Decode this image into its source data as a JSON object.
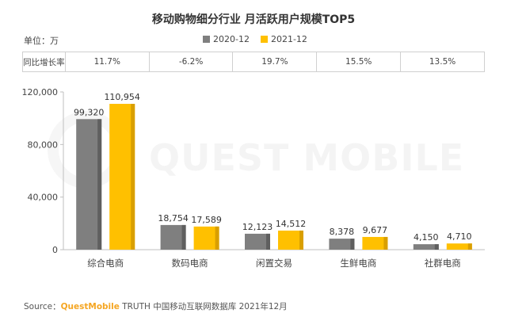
{
  "title": "移动购物细分行业 月活跃用户规模TOP5",
  "unit_label": "单位：万",
  "watermark": "QUEST MOBILE",
  "growth_row": {
    "label": "同比增长率",
    "values": [
      "11.7%",
      "-6.2%",
      "19.7%",
      "15.5%",
      "13.5%"
    ]
  },
  "colors": {
    "series_2020": "#7f7f7f",
    "series_2021": "#ffc000"
  },
  "source": {
    "prefix": "Source：",
    "brand": "QuestMobile",
    "rest": "TRUTH 中国移动互联网数据库 2021年12月"
  },
  "chart_data": {
    "type": "bar",
    "title": "移动购物细分行业 月活跃用户规模TOP5",
    "categories": [
      "综合电商",
      "数码电商",
      "闲置交易",
      "生鲜电商",
      "社群电商"
    ],
    "series": [
      {
        "name": "2020-12",
        "values": [
          99320,
          18754,
          12123,
          8378,
          4150
        ],
        "labels": [
          "99,320",
          "18,754",
          "12,123",
          "8,378",
          "4,150"
        ]
      },
      {
        "name": "2021-12",
        "values": [
          110954,
          17589,
          14512,
          9677,
          4710
        ],
        "labels": [
          "110,954",
          "17,589",
          "14,512",
          "9,677",
          "4,710"
        ]
      }
    ],
    "yticks": [
      0,
      40000,
      80000,
      120000
    ],
    "ytick_labels": [
      "0",
      "40,000",
      "80,000",
      "120,000"
    ],
    "ylim": [
      0,
      120000
    ],
    "xlabel": "",
    "ylabel": "",
    "legend": "top-center"
  }
}
